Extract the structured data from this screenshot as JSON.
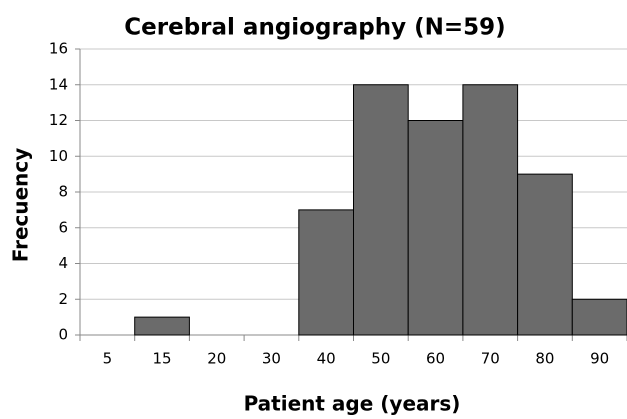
{
  "chart_data": {
    "type": "bar",
    "title": "Cerebral angiography (N=59)",
    "x_label": "Patient age (years)",
    "y_label": "Frecuency",
    "categories": [
      "5",
      "15",
      "20",
      "30",
      "40",
      "50",
      "60",
      "70",
      "80",
      "90"
    ],
    "values": [
      0,
      1,
      0,
      0,
      7,
      14,
      12,
      14,
      9,
      2
    ],
    "color": "#6b6b6b",
    "ylim": [
      0,
      16
    ],
    "yticks": [
      0,
      2,
      4,
      6,
      8,
      10,
      12,
      14,
      16
    ],
    "grid": true
  }
}
